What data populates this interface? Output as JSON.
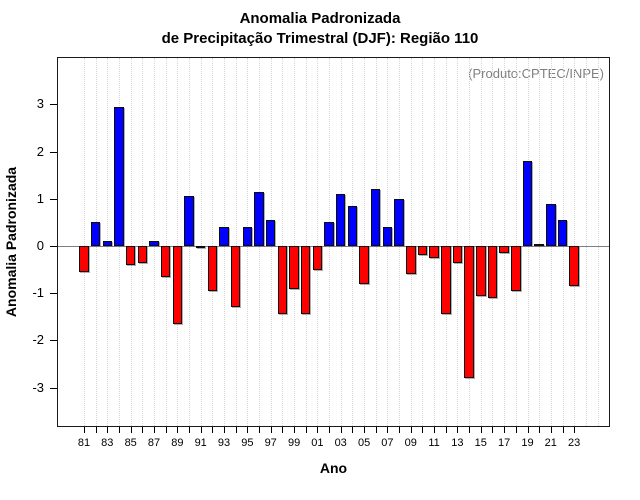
{
  "title": {
    "line1": "Anomalia Padronizada",
    "line2": "de Precipitação Trimestral (DJF): Região 110"
  },
  "annotation": "(Produto:CPTEC/INPE)",
  "chart_data": {
    "type": "bar",
    "title": "Anomalia Padronizada de Precipitação Trimestral (DJF): Região 110",
    "xlabel": "Ano",
    "ylabel": "Anomalia Padronizada",
    "ylim": [
      -3.5,
      3.5
    ],
    "yticks": [
      3,
      2,
      1,
      0,
      -1,
      -2,
      -3
    ],
    "x_tick_labels_shown": [
      "81",
      "83",
      "85",
      "87",
      "89",
      "91",
      "93",
      "95",
      "97",
      "99",
      "01",
      "03",
      "05",
      "07",
      "09",
      "11",
      "13",
      "15",
      "17",
      "19",
      "21",
      "23"
    ],
    "categories": [
      "81",
      "82",
      "83",
      "84",
      "85",
      "86",
      "87",
      "88",
      "89",
      "90",
      "91",
      "92",
      "93",
      "94",
      "95",
      "96",
      "97",
      "98",
      "99",
      "00",
      "01",
      "02",
      "03",
      "04",
      "05",
      "06",
      "07",
      "08",
      "09",
      "10",
      "11",
      "12",
      "13",
      "14",
      "15",
      "16",
      "17",
      "18",
      "19",
      "20",
      "21",
      "22",
      "23"
    ],
    "values": [
      -0.55,
      0.5,
      0.1,
      2.95,
      -0.4,
      -0.35,
      0.1,
      -0.65,
      -1.65,
      1.05,
      -0.05,
      -0.95,
      0.4,
      -1.3,
      0.4,
      1.15,
      0.55,
      -1.45,
      -0.9,
      -1.45,
      -0.5,
      0.5,
      1.1,
      0.85,
      -0.8,
      1.2,
      0.4,
      1.0,
      -0.6,
      -0.2,
      -0.25,
      -1.45,
      -0.35,
      -2.8,
      -1.05,
      -1.1,
      -0.15,
      -0.95,
      1.8,
      0.05,
      0.9,
      0.55,
      -0.85
    ],
    "grid": "vertical-dotted",
    "legend": "none",
    "colors": {
      "positive": "#0000ff",
      "negative": "#ff0000",
      "bar_border": "#0d0d0d",
      "gridline": "#d6d6d6",
      "zero_line": "#7f7f7f",
      "annotation": "#808080",
      "background": "#ffffff"
    }
  }
}
